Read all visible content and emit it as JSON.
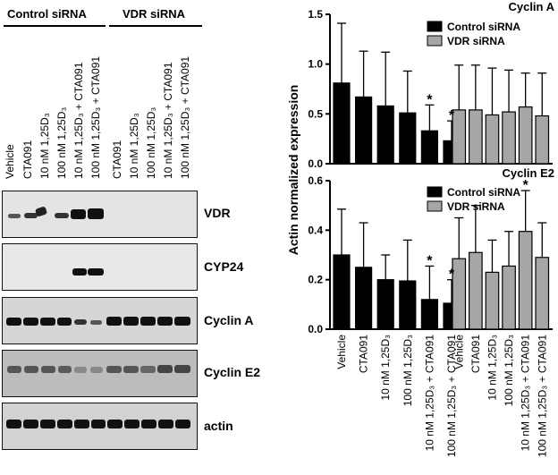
{
  "blot": {
    "header_left": "Control siRNA",
    "header_right": "VDR siRNA",
    "lanes_left": [
      "Vehicle",
      "CTA091",
      "10 nM 1,25D₃",
      "100 nM 1,25D₃",
      "10 nM 1,25D₃ + CTA091",
      "100 nM 1,25D₃ + CTA091"
    ],
    "lanes_right": [
      "CTA091",
      "10 nM 1,25D₃",
      "100 nM 1,25D₃",
      "10 nM 1,25D₃ + CTA091",
      "100 nM 1,25D₃ + CTA091"
    ],
    "panels": [
      {
        "label": "VDR",
        "background": "#e2e2e2"
      },
      {
        "label": "CYP24",
        "background": "#e6e6e6"
      },
      {
        "label": "Cyclin A",
        "background": "#d4d4d4"
      },
      {
        "label": "Cyclin E2",
        "background": "#b8b8b8"
      },
      {
        "label": "actin",
        "background": "#d0d0d0"
      }
    ]
  },
  "chart_data": [
    {
      "type": "bar",
      "title": "Cyclin A",
      "ylabel": "Actin normalized expression",
      "ylim": [
        0,
        1.5
      ],
      "yticks": [
        "0.0",
        "0.5",
        "1.0",
        "1.5"
      ],
      "series": [
        {
          "name": "Control siRNA",
          "color": "#000000",
          "values": [
            0.81,
            0.67,
            0.58,
            0.51,
            0.33,
            0.23
          ],
          "errors": [
            0.6,
            0.46,
            0.54,
            0.42,
            0.26,
            0.2
          ],
          "stars": [
            false,
            false,
            false,
            false,
            true,
            true
          ]
        },
        {
          "name": "VDR siRNA",
          "color": "#a6a6a6",
          "values": [
            0.54,
            0.54,
            0.49,
            0.52,
            0.57,
            0.48
          ],
          "errors": [
            0.45,
            0.45,
            0.47,
            0.42,
            0.34,
            0.43
          ],
          "stars": [
            false,
            false,
            false,
            false,
            false,
            false
          ]
        }
      ]
    },
    {
      "type": "bar",
      "title": "Cyclin E2",
      "ylim": [
        0,
        0.6
      ],
      "yticks": [
        "0.0",
        "0.2",
        "0.4",
        "0.6"
      ],
      "series": [
        {
          "name": "Control siRNA",
          "color": "#000000",
          "values": [
            0.3,
            0.25,
            0.2,
            0.195,
            0.12,
            0.105
          ],
          "errors": [
            0.185,
            0.18,
            0.1,
            0.165,
            0.135,
            0.095
          ],
          "stars": [
            false,
            false,
            false,
            false,
            true,
            true
          ]
        },
        {
          "name": "VDR siRNA",
          "color": "#a6a6a6",
          "values": [
            0.285,
            0.31,
            0.23,
            0.255,
            0.395,
            0.29
          ],
          "errors": [
            0.165,
            0.19,
            0.13,
            0.14,
            0.165,
            0.14
          ],
          "stars": [
            false,
            false,
            false,
            false,
            true,
            false
          ]
        }
      ],
      "categories": [
        "Vehicle",
        "CTA091",
        "10 nM 1,25D₃",
        "100 nM 1,25D₃",
        "10 nM 1,25D₃ + CTA091",
        "100 nM 1,25D₃ + CTA091"
      ]
    }
  ]
}
